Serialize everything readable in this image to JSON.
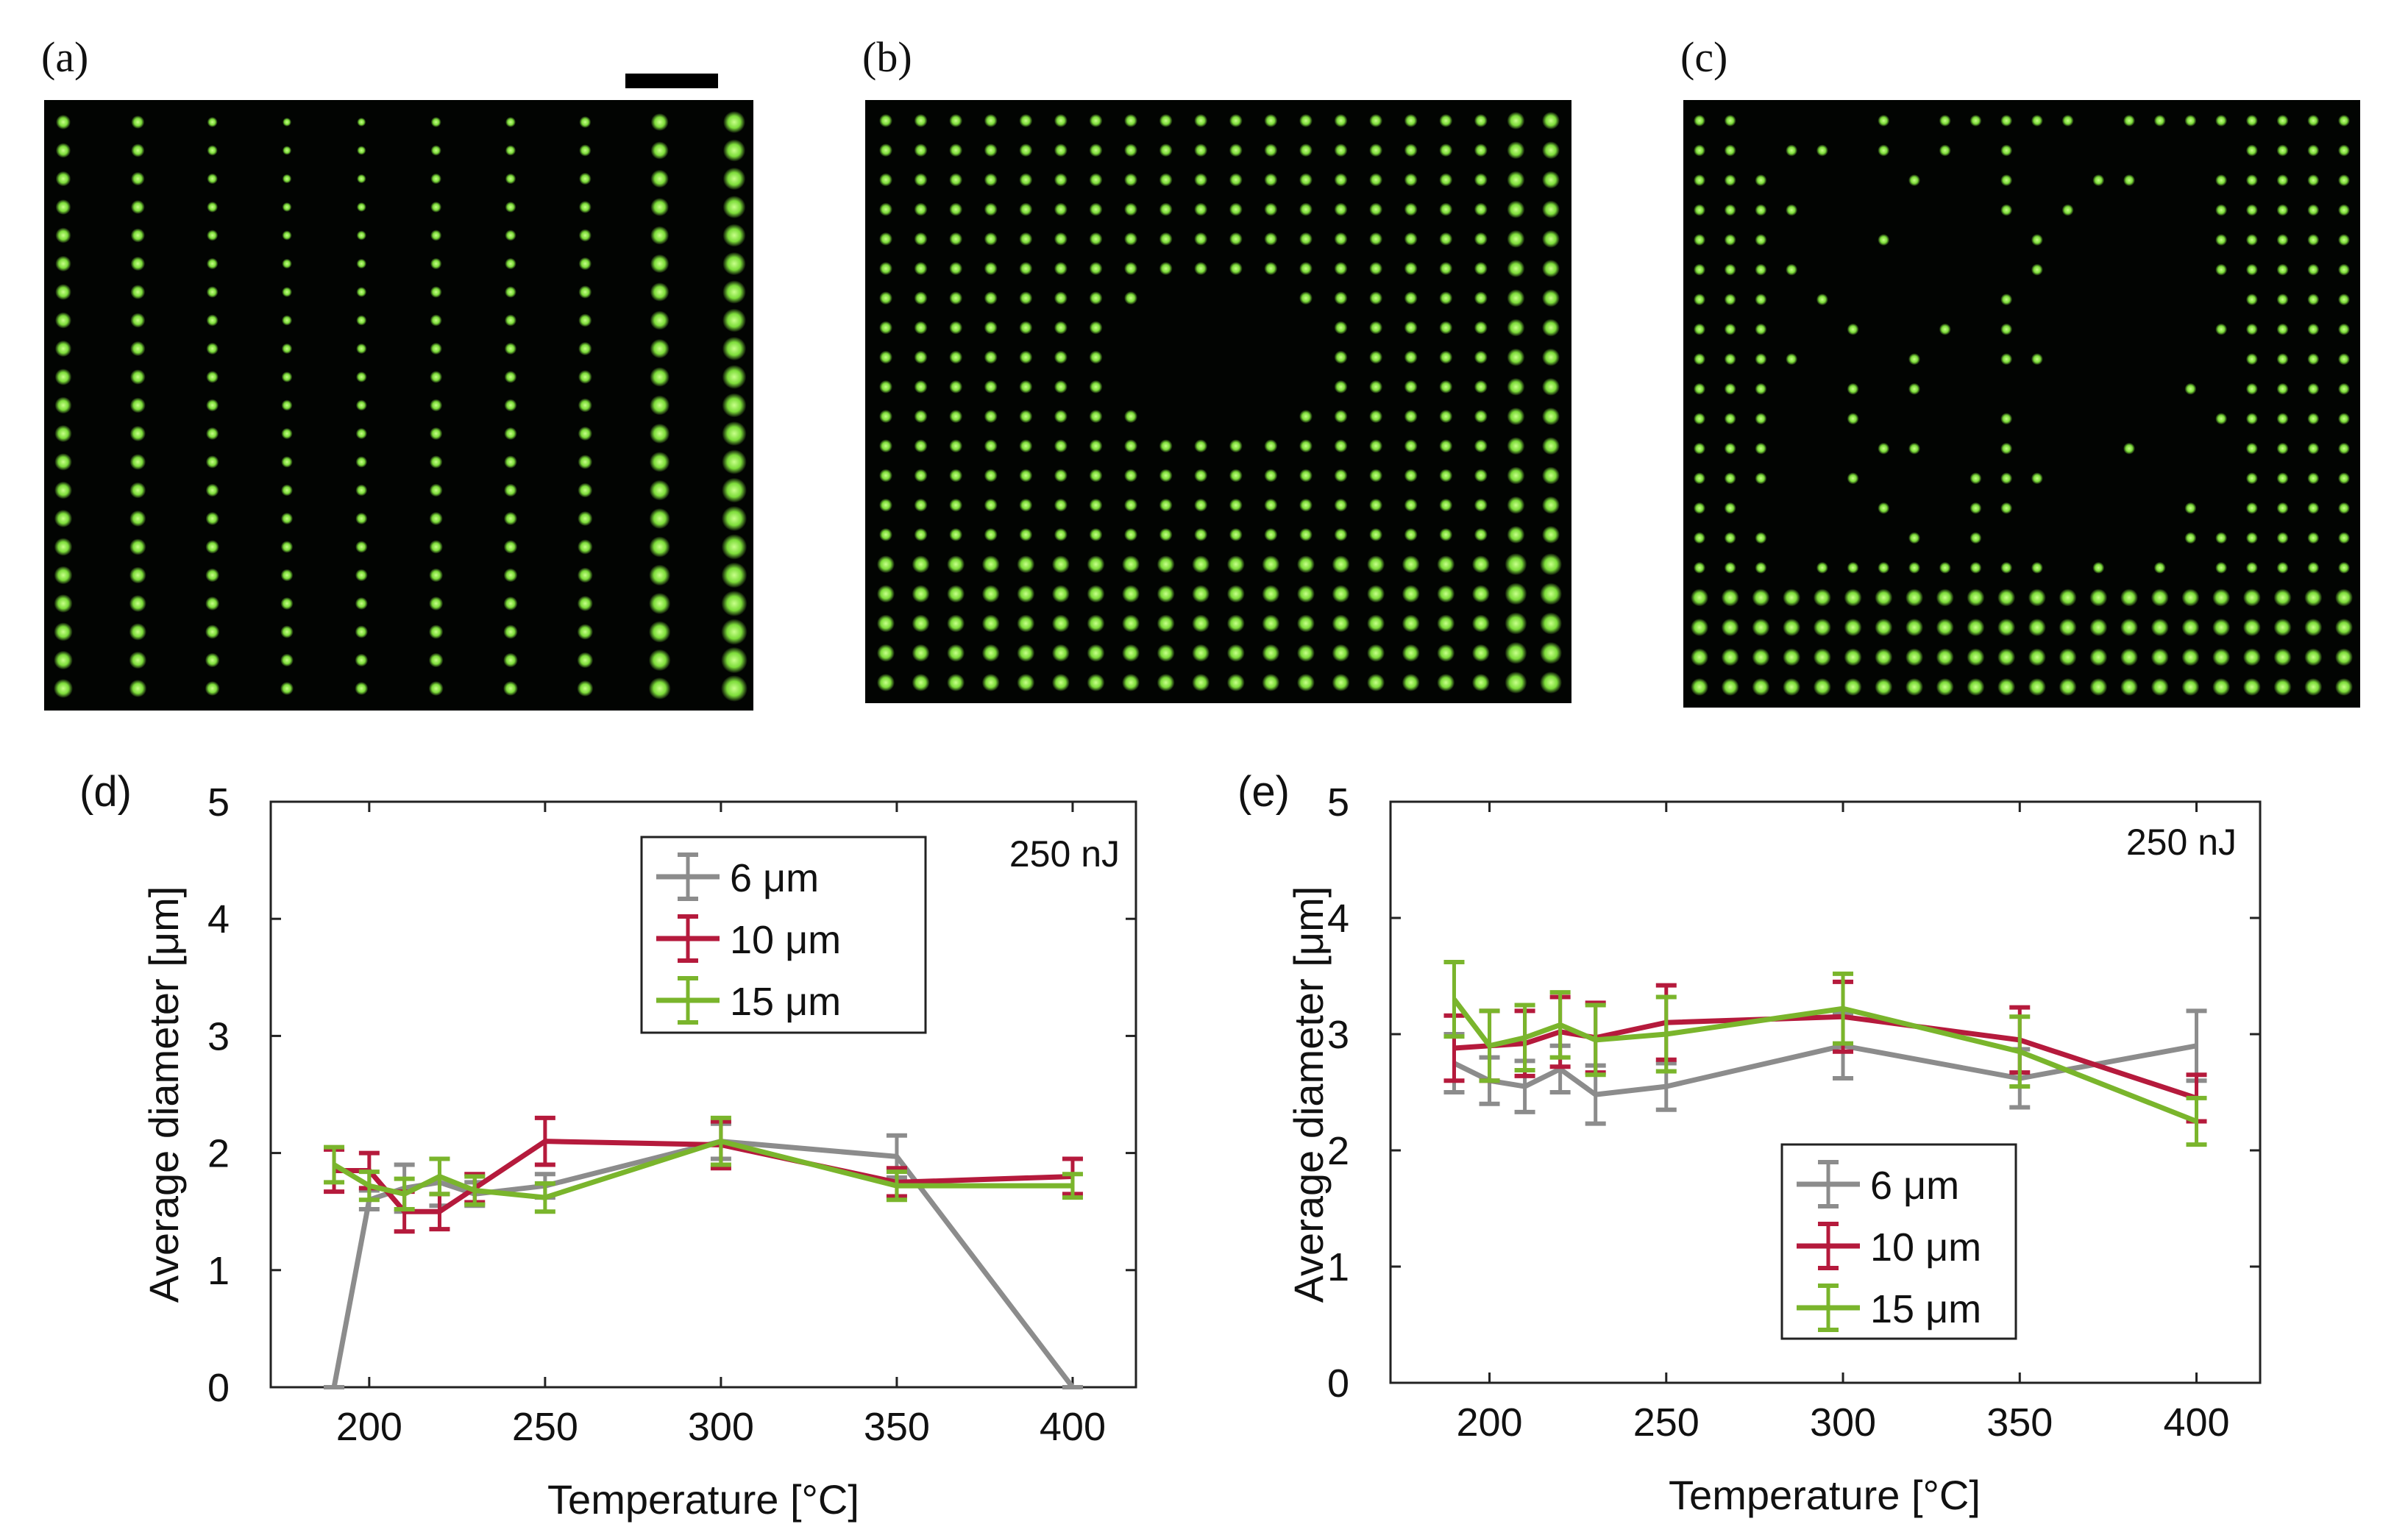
{
  "panel_labels": {
    "a": "(a)",
    "b": "(b)",
    "c": "(c)",
    "d": "(d)",
    "e": "(e)"
  },
  "micrographs": {
    "dot_color": "#7ddc3a",
    "background_color": "#020402",
    "a": {
      "rows": 21,
      "cols": 10
    },
    "b": {
      "rows": 20,
      "cols": 20
    },
    "c": {
      "rows": 20,
      "cols": 22
    }
  },
  "colors": {
    "6um": "#8c8c8c",
    "10um": "#b51a3c",
    "15um": "#7ab52c"
  },
  "chart_data": [
    {
      "id": "d",
      "type": "line",
      "xlabel": "Temperature [°C]",
      "ylabel": "Average diameter [μm]",
      "annotation": "250 nJ",
      "xlim": [
        172,
        418
      ],
      "ylim": [
        0,
        5
      ],
      "xticks": [
        200,
        250,
        300,
        350,
        400
      ],
      "yticks": [
        0,
        1,
        2,
        3,
        4,
        5
      ],
      "legend_position": "top-center",
      "grid": false,
      "series": [
        {
          "name": "6 μm",
          "color": "#8c8c8c",
          "x": [
            190,
            200,
            210,
            220,
            230,
            250,
            300,
            350,
            400
          ],
          "y": [
            0,
            1.6,
            1.7,
            1.75,
            1.65,
            1.72,
            2.1,
            1.97,
            0
          ],
          "err": [
            0,
            0.08,
            0.2,
            0.2,
            0.1,
            0.1,
            0.15,
            0.18,
            0
          ]
        },
        {
          "name": "10 μm",
          "color": "#b51a3c",
          "x": [
            190,
            200,
            210,
            220,
            230,
            250,
            300,
            350,
            400
          ],
          "y": [
            1.85,
            1.85,
            1.5,
            1.5,
            1.7,
            2.1,
            2.07,
            1.75,
            1.8
          ],
          "err": [
            0.18,
            0.15,
            0.17,
            0.15,
            0.12,
            0.2,
            0.2,
            0.12,
            0.15
          ]
        },
        {
          "name": "15 μm",
          "color": "#7ab52c",
          "x": [
            190,
            200,
            210,
            220,
            230,
            250,
            300,
            350,
            400
          ],
          "y": [
            1.9,
            1.72,
            1.65,
            1.8,
            1.68,
            1.62,
            2.1,
            1.72,
            1.72
          ],
          "err": [
            0.15,
            0.12,
            0.13,
            0.15,
            0.12,
            0.12,
            0.2,
            0.12,
            0.1
          ]
        }
      ]
    },
    {
      "id": "e",
      "type": "line",
      "xlabel": "Temperature [°C]",
      "ylabel": "Average diameter [μm]",
      "annotation": "250 nJ",
      "xlim": [
        172,
        418
      ],
      "ylim": [
        0,
        5
      ],
      "xticks": [
        200,
        250,
        300,
        350,
        400
      ],
      "yticks": [
        0,
        1,
        2,
        3,
        4,
        5
      ],
      "legend_position": "bottom-center",
      "grid": false,
      "series": [
        {
          "name": "6 μm",
          "color": "#8c8c8c",
          "x": [
            190,
            200,
            210,
            220,
            230,
            250,
            300,
            350,
            400
          ],
          "y": [
            2.75,
            2.6,
            2.55,
            2.7,
            2.48,
            2.55,
            2.9,
            2.62,
            2.9
          ],
          "err": [
            0.25,
            0.2,
            0.22,
            0.2,
            0.25,
            0.2,
            0.28,
            0.25,
            0.3
          ]
        },
        {
          "name": "10 μm",
          "color": "#b51a3c",
          "x": [
            190,
            200,
            210,
            220,
            230,
            250,
            300,
            350,
            400
          ],
          "y": [
            2.88,
            2.9,
            2.92,
            3.02,
            2.97,
            3.1,
            3.15,
            2.95,
            2.45
          ],
          "err": [
            0.28,
            0.3,
            0.28,
            0.3,
            0.3,
            0.32,
            0.3,
            0.28,
            0.2
          ]
        },
        {
          "name": "15 μm",
          "color": "#7ab52c",
          "x": [
            190,
            200,
            210,
            220,
            230,
            250,
            300,
            350,
            400
          ],
          "y": [
            3.3,
            2.9,
            2.97,
            3.08,
            2.95,
            3.0,
            3.22,
            2.85,
            2.25
          ],
          "err": [
            0.32,
            0.3,
            0.28,
            0.28,
            0.3,
            0.32,
            0.3,
            0.3,
            0.2
          ]
        }
      ]
    }
  ]
}
